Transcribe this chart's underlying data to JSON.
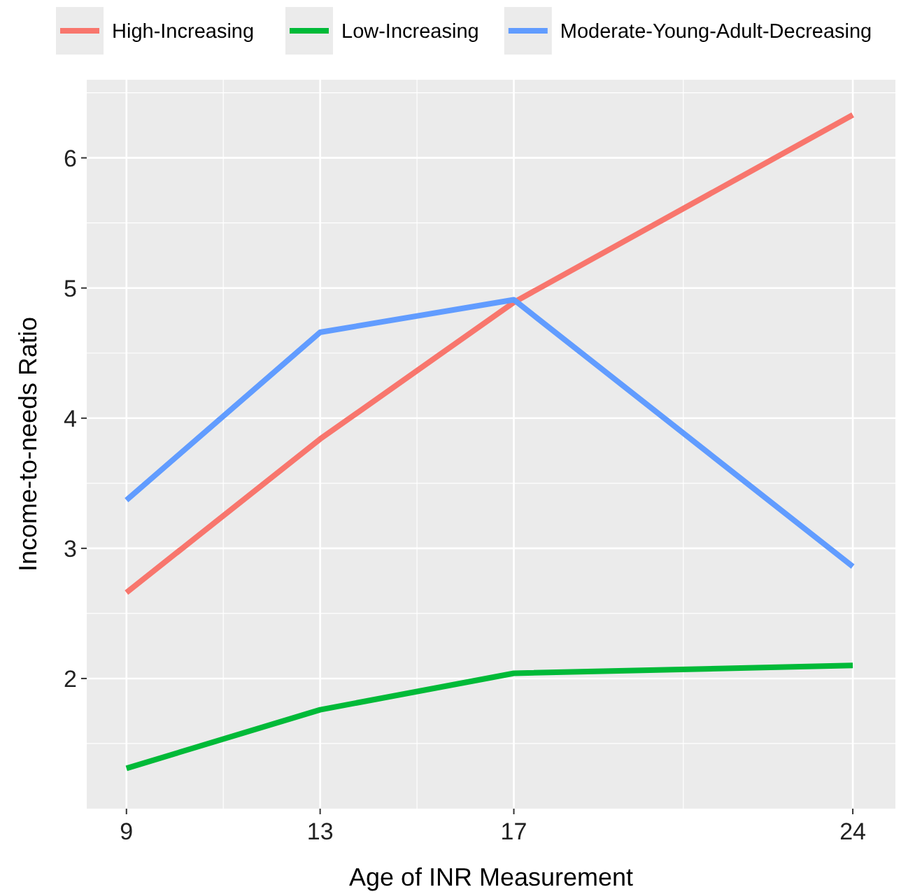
{
  "chart_data": {
    "type": "line",
    "xlabel": "Age of INR Measurement",
    "ylabel": "Income-to-needs Ratio",
    "x": [
      9,
      13,
      17,
      24
    ],
    "series": [
      {
        "name": "High-Increasing",
        "color": "#f8766d",
        "values": [
          2.66,
          3.84,
          4.89,
          6.33
        ]
      },
      {
        "name": "Low-Increasing",
        "color": "#00ba38",
        "values": [
          1.31,
          1.76,
          2.04,
          2.1
        ]
      },
      {
        "name": "Moderate-Young-Adult-Decreasing",
        "color": "#619cff",
        "values": [
          3.37,
          4.66,
          4.91,
          2.86
        ]
      }
    ],
    "xlim": [
      8.18,
      24.88
    ],
    "xticks": [
      9,
      13,
      17,
      24
    ],
    "ylim": [
      1.0,
      6.6
    ],
    "yticks": [
      2,
      3,
      4,
      5,
      6
    ],
    "grid": true,
    "legend": "top",
    "line_style": "solid",
    "marker": "none"
  }
}
